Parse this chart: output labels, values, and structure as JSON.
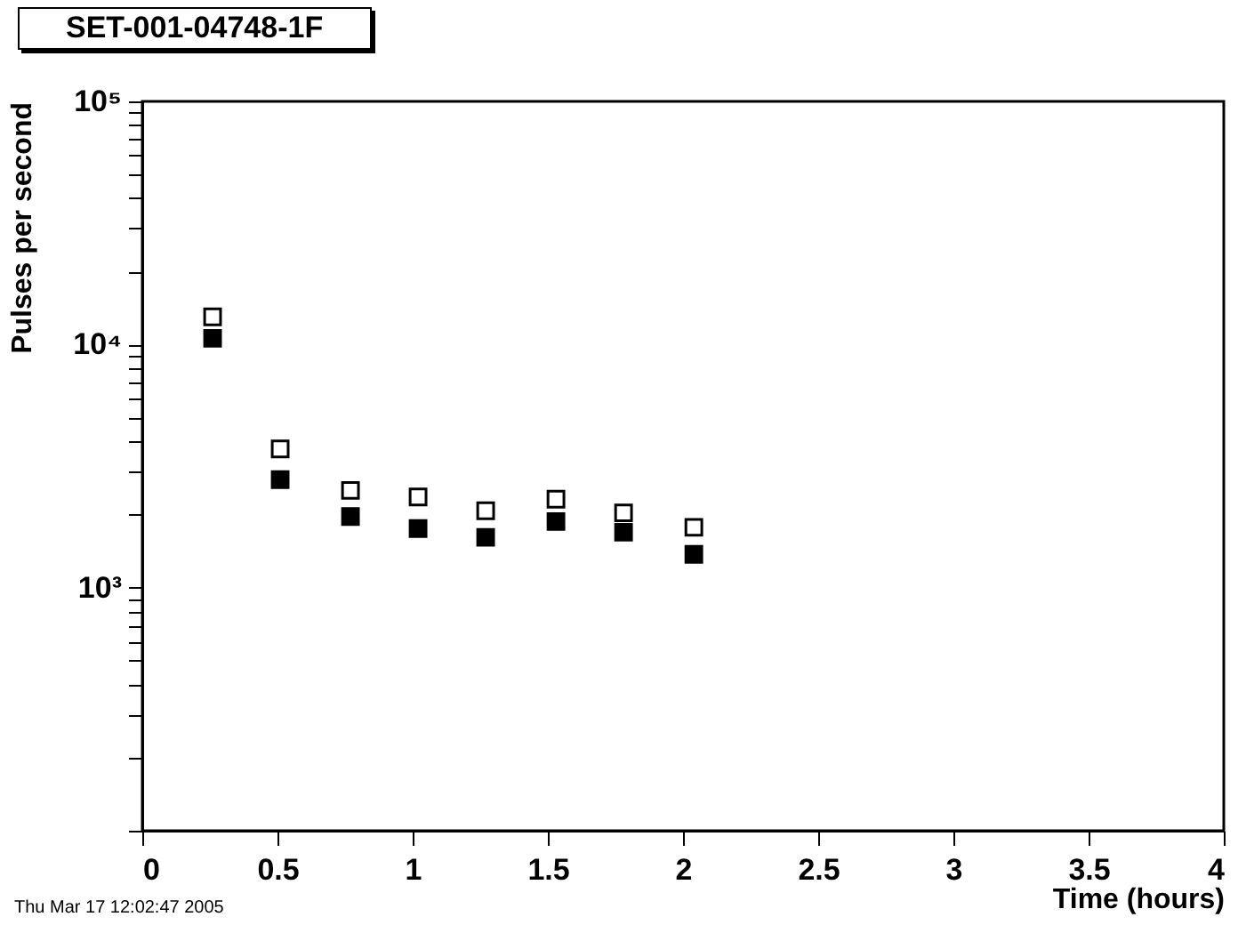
{
  "chart_data": {
    "type": "scatter",
    "title": "SET-001-04748-1F",
    "xlabel": "Time (hours)",
    "ylabel": "Pulses per second",
    "annotations": [
      "Thu Mar 17 12:02:47 2005"
    ],
    "x": [
      0.26,
      0.51,
      0.77,
      1.02,
      1.27,
      1.53,
      1.78,
      2.04
    ],
    "series": [
      {
        "color": "#000000",
        "values": [
          13000,
          3720,
          2510,
          2360,
          2070,
          2310,
          2030,
          1770
        ]
      },
      {
        "color": "#000000",
        "values": [
          10600,
          2780,
          1960,
          1750,
          1610,
          1870,
          1690,
          1370
        ]
      }
    ],
    "log": "y",
    "marker": "square",
    "xlim": [
      0,
      4
    ],
    "xticks": [
      0,
      0.5,
      1,
      1.5,
      2,
      2.5,
      3,
      3.5,
      4
    ],
    "ylim": [
      100,
      100000
    ],
    "yticks": [
      {
        "value": 100,
        "label": null
      },
      {
        "value": 200,
        "label": null
      },
      {
        "value": 300,
        "label": null
      },
      {
        "value": 400,
        "label": null
      },
      {
        "value": 500,
        "label": null
      },
      {
        "value": 600,
        "label": null
      },
      {
        "value": 700,
        "label": null
      },
      {
        "value": 800,
        "label": null
      },
      {
        "value": 900,
        "label": null
      },
      {
        "value": 1000,
        "label": "10³"
      },
      {
        "value": 2000,
        "label": null
      },
      {
        "value": 3000,
        "label": null
      },
      {
        "value": 4000,
        "label": null
      },
      {
        "value": 5000,
        "label": null
      },
      {
        "value": 6000,
        "label": null
      },
      {
        "value": 7000,
        "label": null
      },
      {
        "value": 8000,
        "label": null
      },
      {
        "value": 9000,
        "label": null
      },
      {
        "value": 10000,
        "label": "10⁴"
      },
      {
        "value": 20000,
        "label": null
      },
      {
        "value": 30000,
        "label": null
      },
      {
        "value": 40000,
        "label": null
      },
      {
        "value": 50000,
        "label": null
      },
      {
        "value": 60000,
        "label": null
      },
      {
        "value": 70000,
        "label": null
      },
      {
        "value": 80000,
        "label": null
      },
      {
        "value": 90000,
        "label": null
      },
      {
        "value": 100000,
        "label": "10⁵"
      }
    ]
  }
}
